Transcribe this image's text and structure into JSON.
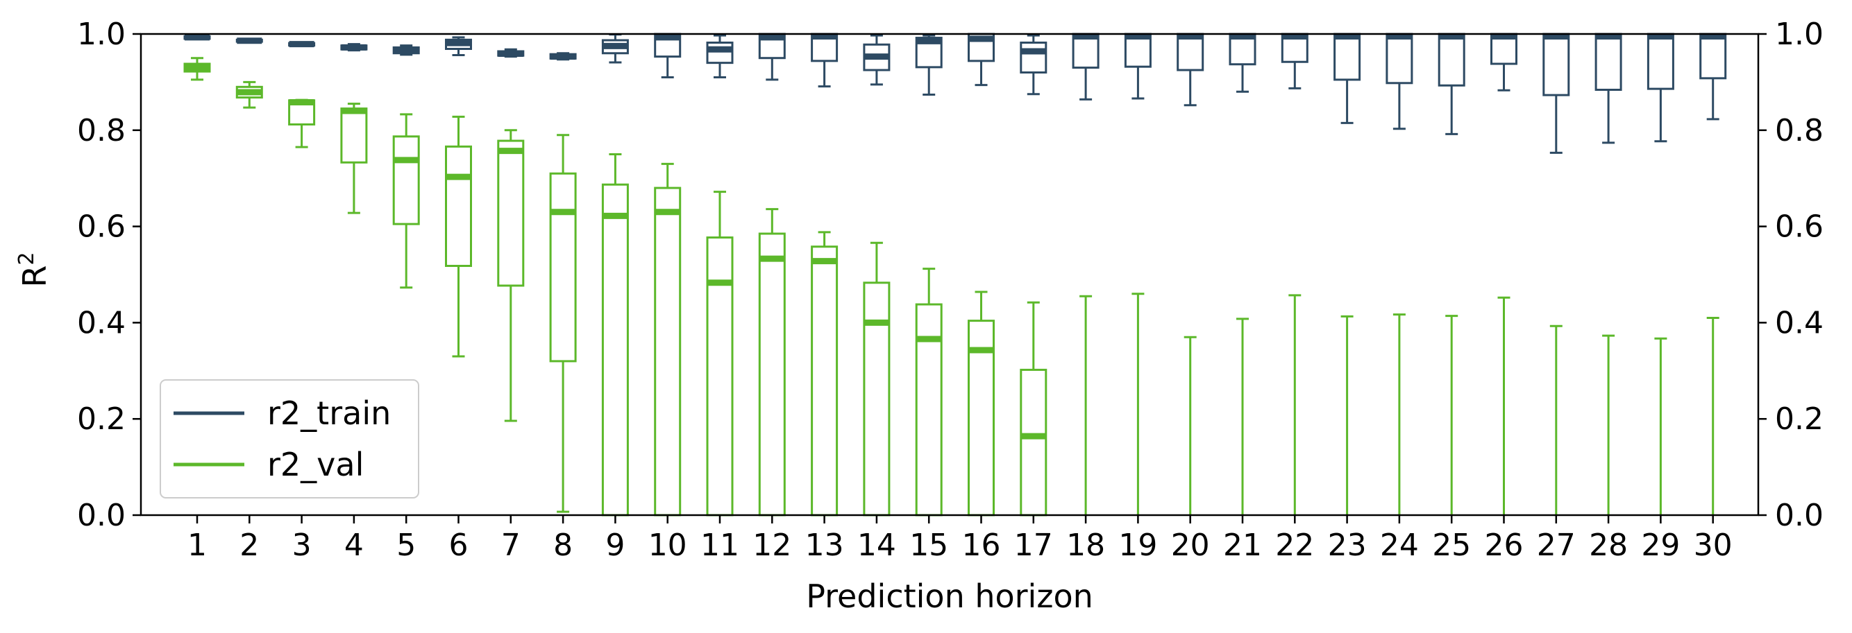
{
  "chart_data": {
    "type": "box",
    "xlabel": "Prediction horizon",
    "ylabel_base": "R",
    "ylabel_sup": "2",
    "ylim": [
      0,
      1
    ],
    "yticks": [
      "0.0",
      "0.2",
      "0.4",
      "0.6",
      "0.8",
      "1.0"
    ],
    "categories": [
      "1",
      "2",
      "3",
      "4",
      "5",
      "6",
      "7",
      "8",
      "9",
      "10",
      "11",
      "12",
      "13",
      "14",
      "15",
      "16",
      "17",
      "18",
      "19",
      "20",
      "21",
      "22",
      "23",
      "24",
      "25",
      "26",
      "27",
      "28",
      "29",
      "30"
    ],
    "legend": {
      "position": "lower-left",
      "entries": [
        "r2_train",
        "r2_val"
      ]
    },
    "series": [
      {
        "name": "r2_train",
        "color": "#2d4a63",
        "boxes": [
          {
            "wlo": 0.99,
            "q1": 0.99,
            "med": 0.993,
            "q3": 0.995,
            "whi": 0.996
          },
          {
            "wlo": 0.984,
            "q1": 0.984,
            "med": 0.986,
            "q3": 0.988,
            "whi": 0.989
          },
          {
            "wlo": 0.976,
            "q1": 0.976,
            "med": 0.979,
            "q3": 0.981,
            "whi": 0.982
          },
          {
            "wlo": 0.966,
            "q1": 0.968,
            "med": 0.972,
            "q3": 0.976,
            "whi": 0.979
          },
          {
            "wlo": 0.957,
            "q1": 0.96,
            "med": 0.966,
            "q3": 0.972,
            "whi": 0.976
          },
          {
            "wlo": 0.956,
            "q1": 0.969,
            "med": 0.981,
            "q3": 0.988,
            "whi": 0.993
          },
          {
            "wlo": 0.953,
            "q1": 0.955,
            "med": 0.959,
            "q3": 0.964,
            "whi": 0.968
          },
          {
            "wlo": 0.947,
            "q1": 0.949,
            "med": 0.953,
            "q3": 0.958,
            "whi": 0.96
          },
          {
            "wlo": 0.941,
            "q1": 0.96,
            "med": 0.975,
            "q3": 0.987,
            "whi": 0.999
          },
          {
            "wlo": 0.91,
            "q1": 0.953,
            "med": 0.993,
            "q3": 1.0,
            "whi": 1.0
          },
          {
            "wlo": 0.91,
            "q1": 0.94,
            "med": 0.968,
            "q3": 0.982,
            "whi": 0.997
          },
          {
            "wlo": 0.905,
            "q1": 0.95,
            "med": 0.993,
            "q3": 1.0,
            "whi": 1.0
          },
          {
            "wlo": 0.891,
            "q1": 0.944,
            "med": 0.995,
            "q3": 1.0,
            "whi": 1.0
          },
          {
            "wlo": 0.895,
            "q1": 0.925,
            "med": 0.953,
            "q3": 0.978,
            "whi": 0.997
          },
          {
            "wlo": 0.874,
            "q1": 0.931,
            "med": 0.985,
            "q3": 0.992,
            "whi": 0.997
          },
          {
            "wlo": 0.894,
            "q1": 0.944,
            "med": 0.99,
            "q3": 1.0,
            "whi": 1.0
          },
          {
            "wlo": 0.875,
            "q1": 0.92,
            "med": 0.964,
            "q3": 0.982,
            "whi": 0.997
          },
          {
            "wlo": 0.864,
            "q1": 0.93,
            "med": 0.995,
            "q3": 1.0,
            "whi": 1.0
          },
          {
            "wlo": 0.866,
            "q1": 0.932,
            "med": 0.995,
            "q3": 1.0,
            "whi": 1.0
          },
          {
            "wlo": 0.852,
            "q1": 0.925,
            "med": 0.995,
            "q3": 1.0,
            "whi": 1.0
          },
          {
            "wlo": 0.88,
            "q1": 0.937,
            "med": 0.995,
            "q3": 1.0,
            "whi": 1.0
          },
          {
            "wlo": 0.887,
            "q1": 0.942,
            "med": 0.995,
            "q3": 1.0,
            "whi": 1.0
          },
          {
            "wlo": 0.815,
            "q1": 0.905,
            "med": 0.995,
            "q3": 1.0,
            "whi": 1.0
          },
          {
            "wlo": 0.803,
            "q1": 0.898,
            "med": 0.995,
            "q3": 1.0,
            "whi": 1.0
          },
          {
            "wlo": 0.792,
            "q1": 0.893,
            "med": 0.995,
            "q3": 1.0,
            "whi": 1.0
          },
          {
            "wlo": 0.883,
            "q1": 0.938,
            "med": 0.995,
            "q3": 1.0,
            "whi": 1.0
          },
          {
            "wlo": 0.753,
            "q1": 0.873,
            "med": 0.995,
            "q3": 1.0,
            "whi": 1.0
          },
          {
            "wlo": 0.774,
            "q1": 0.884,
            "med": 0.995,
            "q3": 1.0,
            "whi": 1.0
          },
          {
            "wlo": 0.777,
            "q1": 0.886,
            "med": 0.995,
            "q3": 1.0,
            "whi": 1.0
          },
          {
            "wlo": 0.823,
            "q1": 0.908,
            "med": 0.995,
            "q3": 1.0,
            "whi": 1.0
          }
        ]
      },
      {
        "name": "r2_val",
        "color": "#5cb82a",
        "boxes": [
          {
            "wlo": 0.905,
            "q1": 0.922,
            "med": 0.93,
            "q3": 0.938,
            "whi": 0.95
          },
          {
            "wlo": 0.847,
            "q1": 0.868,
            "med": 0.879,
            "q3": 0.89,
            "whi": 0.9
          },
          {
            "wlo": 0.765,
            "q1": 0.812,
            "med": 0.858,
            "q3": 0.862,
            "whi": 0.863
          },
          {
            "wlo": 0.628,
            "q1": 0.733,
            "med": 0.84,
            "q3": 0.845,
            "whi": 0.855
          },
          {
            "wlo": 0.473,
            "q1": 0.605,
            "med": 0.738,
            "q3": 0.787,
            "whi": 0.833
          },
          {
            "wlo": 0.33,
            "q1": 0.518,
            "med": 0.703,
            "q3": 0.766,
            "whi": 0.828
          },
          {
            "wlo": 0.196,
            "q1": 0.477,
            "med": 0.757,
            "q3": 0.778,
            "whi": 0.8
          },
          {
            "wlo": 0.007,
            "q1": 0.32,
            "med": 0.63,
            "q3": 0.71,
            "whi": 0.79
          },
          {
            "wlo": 0.0,
            "q1": 0.0,
            "med": 0.622,
            "q3": 0.687,
            "whi": 0.75
          },
          {
            "wlo": 0.0,
            "q1": 0.0,
            "med": 0.63,
            "q3": 0.68,
            "whi": 0.73
          },
          {
            "wlo": 0.0,
            "q1": 0.0,
            "med": 0.483,
            "q3": 0.577,
            "whi": 0.672
          },
          {
            "wlo": 0.0,
            "q1": 0.0,
            "med": 0.533,
            "q3": 0.585,
            "whi": 0.636
          },
          {
            "wlo": 0.0,
            "q1": 0.0,
            "med": 0.528,
            "q3": 0.558,
            "whi": 0.588
          },
          {
            "wlo": 0.0,
            "q1": 0.0,
            "med": 0.4,
            "q3": 0.483,
            "whi": 0.566
          },
          {
            "wlo": 0.0,
            "q1": 0.0,
            "med": 0.366,
            "q3": 0.438,
            "whi": 0.512
          },
          {
            "wlo": 0.0,
            "q1": 0.0,
            "med": 0.343,
            "q3": 0.404,
            "whi": 0.464
          },
          {
            "wlo": 0.0,
            "q1": 0.0,
            "med": 0.164,
            "q3": 0.302,
            "whi": 0.442
          },
          {
            "wlo": 0.0,
            "q1": 0.0,
            "med": 0.0,
            "q3": 0.0,
            "whi": 0.455
          },
          {
            "wlo": 0.0,
            "q1": 0.0,
            "med": 0.0,
            "q3": 0.0,
            "whi": 0.46
          },
          {
            "wlo": 0.0,
            "q1": 0.0,
            "med": 0.0,
            "q3": 0.0,
            "whi": 0.37
          },
          {
            "wlo": 0.0,
            "q1": 0.0,
            "med": 0.0,
            "q3": 0.0,
            "whi": 0.408
          },
          {
            "wlo": 0.0,
            "q1": 0.0,
            "med": 0.0,
            "q3": 0.0,
            "whi": 0.457
          },
          {
            "wlo": 0.0,
            "q1": 0.0,
            "med": 0.0,
            "q3": 0.0,
            "whi": 0.413
          },
          {
            "wlo": 0.0,
            "q1": 0.0,
            "med": 0.0,
            "q3": 0.0,
            "whi": 0.417
          },
          {
            "wlo": 0.0,
            "q1": 0.0,
            "med": 0.0,
            "q3": 0.0,
            "whi": 0.414
          },
          {
            "wlo": 0.0,
            "q1": 0.0,
            "med": 0.0,
            "q3": 0.0,
            "whi": 0.452
          },
          {
            "wlo": 0.0,
            "q1": 0.0,
            "med": 0.0,
            "q3": 0.0,
            "whi": 0.393
          },
          {
            "wlo": 0.0,
            "q1": 0.0,
            "med": 0.0,
            "q3": 0.0,
            "whi": 0.373
          },
          {
            "wlo": 0.0,
            "q1": 0.0,
            "med": 0.0,
            "q3": 0.0,
            "whi": 0.367
          },
          {
            "wlo": 0.0,
            "q1": 0.0,
            "med": 0.0,
            "q3": 0.0,
            "whi": 0.41
          }
        ]
      }
    ]
  }
}
